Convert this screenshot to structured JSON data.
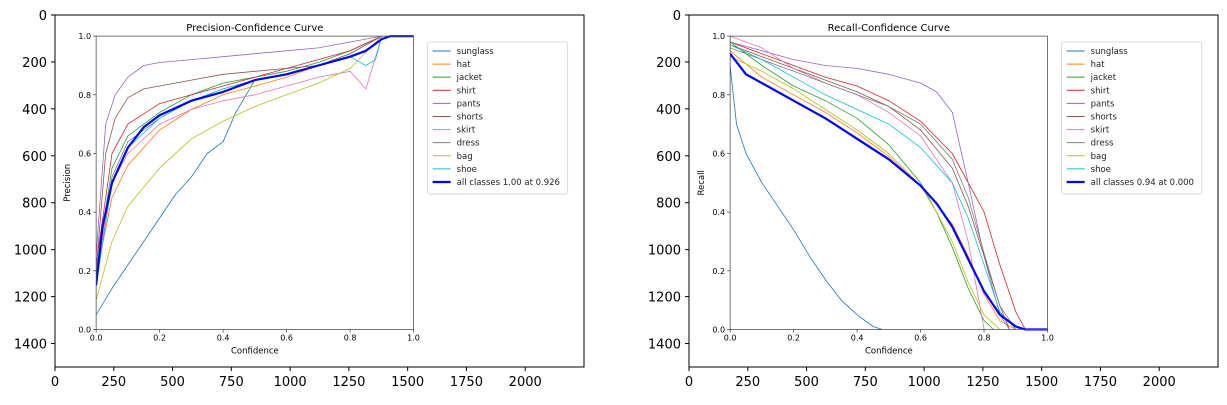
{
  "chart_data": [
    {
      "type": "image-axes",
      "xlim": [
        0,
        2250
      ],
      "ylim": [
        1500,
        0
      ],
      "xticks": [
        "0",
        "250",
        "500",
        "750",
        "1000",
        "1250",
        "1500",
        "1750",
        "2000"
      ],
      "yticks": [
        "0",
        "200",
        "400",
        "600",
        "800",
        "1000",
        "1200",
        "1400"
      ],
      "grid": false,
      "inner": {
        "type": "line",
        "title": "Precision-Confidence Curve",
        "xlabel": "Confidence",
        "ylabel": "Precision",
        "xlim": [
          0,
          1
        ],
        "ylim": [
          0,
          1
        ],
        "xticks": [
          "0.0",
          "0.2",
          "0.4",
          "0.6",
          "0.8",
          "1.0"
        ],
        "yticks": [
          "0.0",
          "0.2",
          "0.4",
          "0.6",
          "0.8",
          "1.0"
        ],
        "legend_position": "outside-right",
        "series": [
          {
            "name": "sunglass",
            "color": "#1f77b4",
            "x": [
              0,
              0.05,
              0.1,
              0.15,
              0.2,
              0.25,
              0.3,
              0.35,
              0.4,
              0.44,
              0.5,
              0.6,
              0.7,
              0.8,
              0.9
            ],
            "y": [
              0.05,
              0.14,
              0.22,
              0.3,
              0.38,
              0.46,
              0.52,
              0.6,
              0.64,
              0.74,
              0.85,
              0.87,
              0.9,
              0.94,
              1.0
            ]
          },
          {
            "name": "hat",
            "color": "#ff7f0e",
            "x": [
              0,
              0.05,
              0.1,
              0.2,
              0.3,
              0.4,
              0.5,
              0.6,
              0.7,
              0.8,
              0.9
            ],
            "y": [
              0.18,
              0.45,
              0.56,
              0.68,
              0.75,
              0.8,
              0.83,
              0.86,
              0.9,
              0.94,
              1.0
            ]
          },
          {
            "name": "jacket",
            "color": "#2ca02c",
            "x": [
              0,
              0.05,
              0.1,
              0.2,
              0.3,
              0.4,
              0.5,
              0.6,
              0.7,
              0.8,
              0.9
            ],
            "y": [
              0.2,
              0.55,
              0.66,
              0.74,
              0.8,
              0.84,
              0.86,
              0.88,
              0.91,
              0.95,
              1.0
            ]
          },
          {
            "name": "shirt",
            "color": "#d62728",
            "x": [
              0,
              0.05,
              0.1,
              0.2,
              0.3,
              0.4,
              0.5,
              0.6,
              0.7,
              0.8,
              0.9
            ],
            "y": [
              0.22,
              0.6,
              0.7,
              0.77,
              0.8,
              0.83,
              0.86,
              0.89,
              0.92,
              0.95,
              1.0
            ]
          },
          {
            "name": "pants",
            "color": "#9467bd",
            "x": [
              0,
              0.03,
              0.06,
              0.1,
              0.15,
              0.2,
              0.3,
              0.4,
              0.5,
              0.6,
              0.7,
              0.8,
              0.9
            ],
            "y": [
              0.25,
              0.7,
              0.8,
              0.86,
              0.9,
              0.91,
              0.92,
              0.93,
              0.94,
              0.95,
              0.96,
              0.98,
              1.0
            ]
          },
          {
            "name": "shorts",
            "color": "#8c564b",
            "x": [
              0,
              0.03,
              0.06,
              0.1,
              0.15,
              0.2,
              0.3,
              0.4,
              0.5,
              0.6,
              0.7,
              0.8,
              0.9
            ],
            "y": [
              0.2,
              0.6,
              0.72,
              0.79,
              0.82,
              0.83,
              0.85,
              0.87,
              0.88,
              0.89,
              0.9,
              0.94,
              1.0
            ]
          },
          {
            "name": "skirt",
            "color": "#e377c2",
            "x": [
              0,
              0.05,
              0.1,
              0.2,
              0.3,
              0.4,
              0.5,
              0.6,
              0.7,
              0.8,
              0.85,
              0.9
            ],
            "y": [
              0.18,
              0.5,
              0.6,
              0.7,
              0.75,
              0.78,
              0.8,
              0.83,
              0.86,
              0.88,
              0.82,
              1.0
            ]
          },
          {
            "name": "dress",
            "color": "#7f7f7f",
            "x": [
              0,
              0.05,
              0.1,
              0.2,
              0.3,
              0.4,
              0.5,
              0.6,
              0.7,
              0.8,
              0.9
            ],
            "y": [
              0.2,
              0.52,
              0.64,
              0.72,
              0.78,
              0.82,
              0.85,
              0.87,
              0.9,
              0.94,
              1.0
            ]
          },
          {
            "name": "bag",
            "color": "#bcbd22",
            "x": [
              0,
              0.05,
              0.1,
              0.2,
              0.3,
              0.4,
              0.5,
              0.6,
              0.7,
              0.8,
              0.9
            ],
            "y": [
              0.1,
              0.3,
              0.42,
              0.55,
              0.65,
              0.71,
              0.76,
              0.8,
              0.84,
              0.89,
              1.0
            ]
          },
          {
            "name": "shoe",
            "color": "#17becf",
            "x": [
              0,
              0.05,
              0.1,
              0.2,
              0.3,
              0.4,
              0.5,
              0.6,
              0.7,
              0.8,
              0.85,
              0.88,
              0.9
            ],
            "y": [
              0.15,
              0.5,
              0.62,
              0.72,
              0.78,
              0.82,
              0.85,
              0.87,
              0.9,
              0.93,
              0.9,
              0.92,
              1.0
            ]
          },
          {
            "name": "all classes 1.00 at 0.926",
            "color": "#0000ff",
            "bold": true,
            "x": [
              0,
              0.02,
              0.05,
              0.1,
              0.15,
              0.2,
              0.3,
              0.4,
              0.45,
              0.5,
              0.6,
              0.7,
              0.8,
              0.85,
              0.9,
              0.926,
              1.0
            ],
            "y": [
              0.15,
              0.35,
              0.5,
              0.62,
              0.69,
              0.73,
              0.78,
              0.81,
              0.83,
              0.85,
              0.87,
              0.9,
              0.93,
              0.95,
              0.99,
              1.0,
              1.0
            ]
          }
        ]
      }
    },
    {
      "type": "image-axes",
      "xlim": [
        0,
        2250
      ],
      "ylim": [
        1500,
        0
      ],
      "xticks": [
        "0",
        "250",
        "500",
        "750",
        "1000",
        "1250",
        "1500",
        "1750",
        "2000"
      ],
      "yticks": [
        "0",
        "200",
        "400",
        "600",
        "800",
        "1000",
        "1200",
        "1400"
      ],
      "grid": false,
      "inner": {
        "type": "line",
        "title": "Recall-Confidence Curve",
        "xlabel": "Confidence",
        "ylabel": "Recall",
        "xlim": [
          0,
          1
        ],
        "ylim": [
          0,
          1
        ],
        "xticks": [
          "0.0",
          "0.2",
          "0.4",
          "0.6",
          "0.8",
          "1.0"
        ],
        "yticks": [
          "0.0",
          "0.2",
          "0.4",
          "0.6",
          "0.8",
          "1.0"
        ],
        "legend_position": "outside-right",
        "series": [
          {
            "name": "sunglass",
            "color": "#1f77b4",
            "x": [
              0,
              0.02,
              0.05,
              0.1,
              0.15,
              0.2,
              0.25,
              0.3,
              0.35,
              0.4,
              0.45,
              0.48
            ],
            "y": [
              0.9,
              0.7,
              0.6,
              0.5,
              0.42,
              0.34,
              0.25,
              0.17,
              0.1,
              0.05,
              0.01,
              0.0
            ]
          },
          {
            "name": "hat",
            "color": "#ff7f0e",
            "x": [
              0,
              0.1,
              0.2,
              0.3,
              0.4,
              0.5,
              0.6,
              0.7,
              0.75,
              0.8,
              0.85,
              0.9
            ],
            "y": [
              0.95,
              0.86,
              0.8,
              0.74,
              0.67,
              0.59,
              0.49,
              0.36,
              0.25,
              0.12,
              0.03,
              0.0
            ]
          },
          {
            "name": "jacket",
            "color": "#2ca02c",
            "x": [
              0,
              0.1,
              0.2,
              0.3,
              0.4,
              0.5,
              0.6,
              0.65,
              0.7,
              0.75,
              0.8,
              0.83
            ],
            "y": [
              0.98,
              0.9,
              0.83,
              0.78,
              0.72,
              0.63,
              0.5,
              0.4,
              0.28,
              0.14,
              0.03,
              0.0
            ]
          },
          {
            "name": "shirt",
            "color": "#d62728",
            "x": [
              0,
              0.1,
              0.2,
              0.3,
              0.4,
              0.5,
              0.6,
              0.7,
              0.8,
              0.85,
              0.9,
              0.93
            ],
            "y": [
              0.98,
              0.94,
              0.9,
              0.86,
              0.83,
              0.78,
              0.71,
              0.6,
              0.4,
              0.22,
              0.06,
              0.0
            ]
          },
          {
            "name": "pants",
            "color": "#9467bd",
            "x": [
              0,
              0.1,
              0.2,
              0.3,
              0.4,
              0.5,
              0.6,
              0.65,
              0.7,
              0.75,
              0.8,
              0.85,
              0.88
            ],
            "y": [
              0.98,
              0.95,
              0.92,
              0.9,
              0.89,
              0.87,
              0.84,
              0.81,
              0.74,
              0.5,
              0.25,
              0.05,
              0.0
            ]
          },
          {
            "name": "shorts",
            "color": "#8c564b",
            "x": [
              0,
              0.1,
              0.2,
              0.3,
              0.4,
              0.5,
              0.6,
              0.7,
              0.75,
              0.8,
              0.85,
              0.88
            ],
            "y": [
              0.97,
              0.93,
              0.89,
              0.85,
              0.81,
              0.76,
              0.68,
              0.55,
              0.42,
              0.25,
              0.08,
              0.0
            ]
          },
          {
            "name": "skirt",
            "color": "#e377c2",
            "x": [
              0,
              0.1,
              0.2,
              0.3,
              0.4,
              0.5,
              0.6,
              0.7,
              0.75,
              0.8
            ],
            "y": [
              1.0,
              0.96,
              0.89,
              0.84,
              0.8,
              0.74,
              0.66,
              0.5,
              0.3,
              0.0
            ]
          },
          {
            "name": "dress",
            "color": "#7f7f7f",
            "x": [
              0,
              0.1,
              0.2,
              0.3,
              0.4,
              0.5,
              0.6,
              0.7,
              0.75,
              0.8,
              0.85,
              0.9
            ],
            "y": [
              0.96,
              0.92,
              0.88,
              0.84,
              0.8,
              0.76,
              0.7,
              0.58,
              0.45,
              0.26,
              0.08,
              0.0
            ]
          },
          {
            "name": "bag",
            "color": "#bcbd22",
            "x": [
              0,
              0.1,
              0.2,
              0.3,
              0.4,
              0.5,
              0.6,
              0.65,
              0.7,
              0.75,
              0.8,
              0.85
            ],
            "y": [
              0.93,
              0.88,
              0.82,
              0.75,
              0.68,
              0.6,
              0.49,
              0.4,
              0.3,
              0.16,
              0.05,
              0.0
            ]
          },
          {
            "name": "shoe",
            "color": "#17becf",
            "x": [
              0,
              0.1,
              0.2,
              0.3,
              0.4,
              0.5,
              0.6,
              0.7,
              0.75,
              0.8,
              0.85,
              0.9
            ],
            "y": [
              0.97,
              0.92,
              0.86,
              0.8,
              0.75,
              0.7,
              0.62,
              0.5,
              0.38,
              0.22,
              0.06,
              0.0
            ]
          },
          {
            "name": "all classes 0.94 at 0.000",
            "color": "#0000ff",
            "bold": true,
            "x": [
              0,
              0.05,
              0.1,
              0.2,
              0.3,
              0.4,
              0.5,
              0.6,
              0.65,
              0.7,
              0.75,
              0.8,
              0.85,
              0.9,
              0.93,
              1.0
            ],
            "y": [
              0.94,
              0.87,
              0.84,
              0.78,
              0.72,
              0.65,
              0.58,
              0.49,
              0.43,
              0.35,
              0.24,
              0.13,
              0.05,
              0.01,
              0.0,
              0.0
            ]
          }
        ]
      }
    }
  ]
}
